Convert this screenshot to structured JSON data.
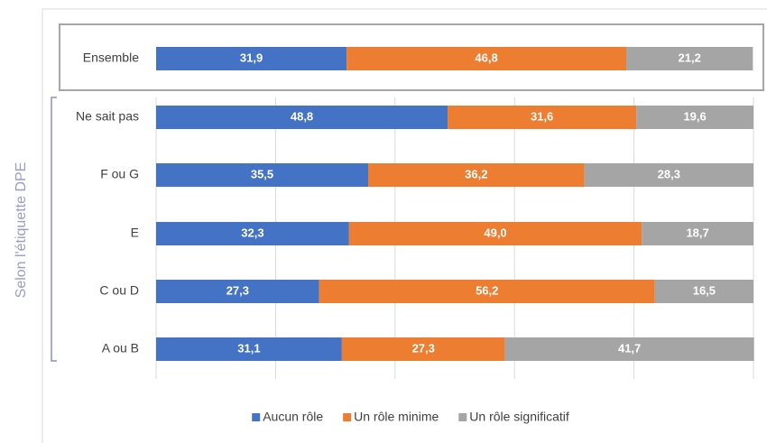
{
  "chart_data": {
    "type": "stacked_bar_horizontal",
    "categories": [
      "Ensemble",
      "Ne sait pas",
      "F ou G",
      "E",
      "C ou D",
      "A ou B"
    ],
    "series": [
      {
        "name": "Aucun rôle",
        "color": "#4472c4",
        "values": [
          31.9,
          48.8,
          35.5,
          32.3,
          27.3,
          31.1
        ],
        "value_labels": [
          "31,9",
          "48,8",
          "35,5",
          "32,3",
          "27,3",
          "31,1"
        ]
      },
      {
        "name": "Un rôle minime",
        "color": "#ed7d31",
        "values": [
          46.8,
          31.6,
          36.2,
          49.0,
          56.2,
          27.3
        ],
        "value_labels": [
          "46,8",
          "31,6",
          "36,2",
          "49,0",
          "56,2",
          "27,3"
        ]
      },
      {
        "name": "Un rôle significatif",
        "color": "#a5a5a5",
        "values": [
          21.2,
          19.6,
          28.3,
          18.7,
          16.5,
          41.7
        ],
        "value_labels": [
          "21,2",
          "19,6",
          "28,3",
          "18,7",
          "16,5",
          "41,7"
        ]
      }
    ],
    "annotation": "Selon l'étiquette DPE",
    "xlim": [
      0,
      100
    ],
    "xticks": [
      0,
      20,
      40,
      60,
      80,
      100
    ],
    "grid": true,
    "legend": "bottom"
  }
}
